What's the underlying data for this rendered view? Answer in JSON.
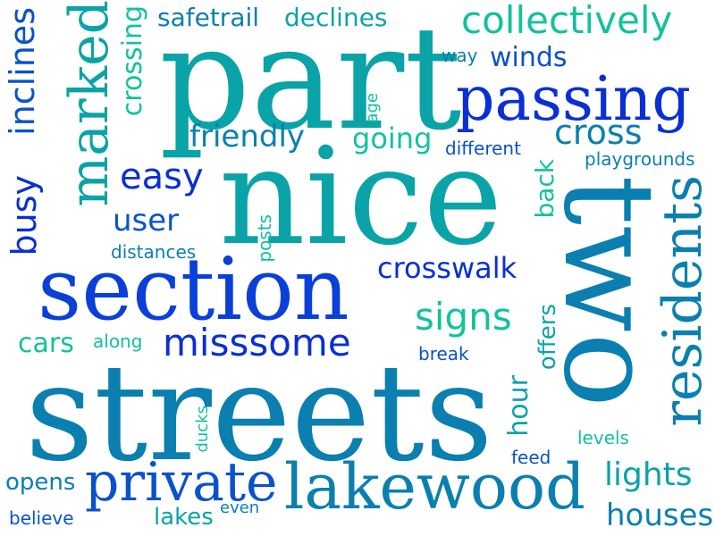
{
  "words": {
    "part": "part",
    "nice": "nice",
    "streets": "streets",
    "two": "two",
    "section": "section",
    "passing": "passing",
    "lakewood": "lakewood",
    "private": "private",
    "marked": "marked",
    "collectively": "collectively",
    "residents": "residents",
    "misssome": "misssome",
    "crosswalk": "crosswalk",
    "cross": "cross",
    "easy": "easy",
    "signs": "signs",
    "user": "user",
    "friendly": "friendly",
    "going": "going",
    "lights": "lights",
    "houses": "houses",
    "busy": "busy",
    "inclines": "inclines",
    "crossing": "crossing",
    "safetrail": "safetrail",
    "declines": "declines",
    "winds": "winds",
    "way": "way",
    "age": "age",
    "different": "different",
    "playgrounds": "playgrounds",
    "back": "back",
    "distances": "distances",
    "posts": "posts",
    "cars": "cars",
    "along": "along",
    "break": "break",
    "offers": "offers",
    "hour": "hour",
    "ducks": "ducks",
    "levels": "levels",
    "feed": "feed",
    "opens": "opens",
    "believe": "believe",
    "lakes": "lakes",
    "even": "even"
  },
  "colors": [
    "#0a2fd6",
    "#0a52cc",
    "#0a7fb0",
    "#0aa3a8",
    "#12c29c",
    "#17e08a"
  ]
}
